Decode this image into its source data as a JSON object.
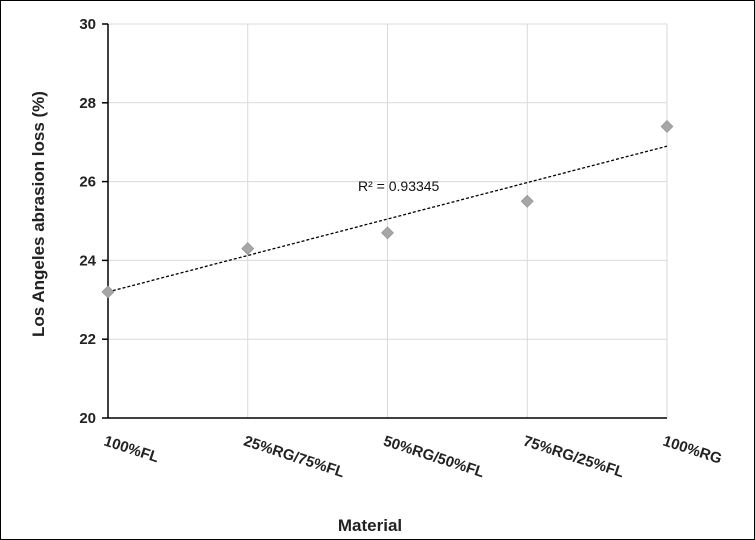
{
  "chart_data": {
    "type": "scatter",
    "title": "",
    "xlabel": "Material",
    "ylabel": "Los Angeles abrasion loss (%)",
    "categories": [
      "100%FL",
      "25%RG/75%FL",
      "50%RG/50%FL",
      "75%RG/25%FL",
      "100%RG"
    ],
    "x": [
      0,
      25,
      50,
      75,
      100
    ],
    "values": [
      23.2,
      24.3,
      24.7,
      25.5,
      27.4
    ],
    "ylim": [
      20,
      30
    ],
    "yticks": [
      "20",
      "22",
      "24",
      "26",
      "28",
      "30"
    ],
    "grid": true,
    "legend": "none",
    "trendline": {
      "type": "linear",
      "r2_label": "R² = 0.93345",
      "start": 23.2,
      "end": 26.9
    },
    "colors": {
      "marker": "#a6a6a6",
      "grid": "#d9d9d9",
      "axis": "#000000",
      "trend": "#000000"
    }
  }
}
